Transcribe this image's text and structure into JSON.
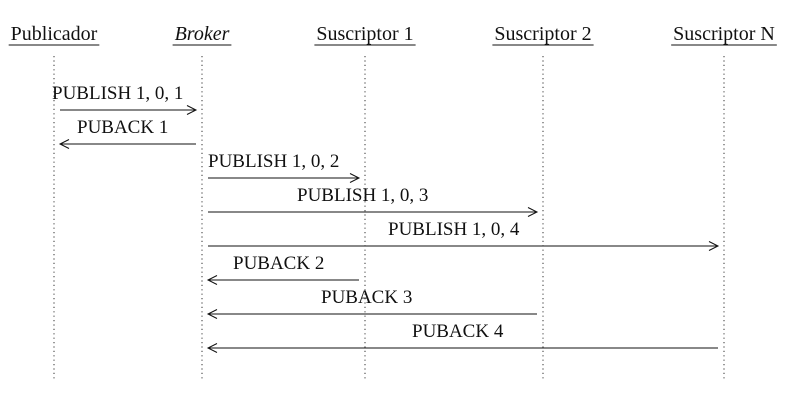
{
  "participants": [
    {
      "id": "publicador",
      "label": "Publicador",
      "italic": false
    },
    {
      "id": "broker",
      "label": "Broker",
      "italic": true
    },
    {
      "id": "suscriptor-1",
      "label": "Suscriptor 1",
      "italic": false
    },
    {
      "id": "suscriptor-2",
      "label": "Suscriptor 2",
      "italic": false
    },
    {
      "id": "suscriptor-n",
      "label": "Suscriptor N",
      "italic": false
    }
  ],
  "messages": [
    {
      "id": "publish-1",
      "label": "PUBLISH 1, 0, 1",
      "from": "publicador",
      "to": "broker"
    },
    {
      "id": "puback-1",
      "label": "PUBACK 1",
      "from": "broker",
      "to": "publicador"
    },
    {
      "id": "publish-2",
      "label": "PUBLISH 1, 0, 2",
      "from": "broker",
      "to": "suscriptor-1"
    },
    {
      "id": "publish-3",
      "label": "PUBLISH 1, 0, 3",
      "from": "broker",
      "to": "suscriptor-2"
    },
    {
      "id": "publish-4",
      "label": "PUBLISH 1, 0, 4",
      "from": "broker",
      "to": "suscriptor-n"
    },
    {
      "id": "puback-2",
      "label": "PUBACK 2",
      "from": "suscriptor-1",
      "to": "broker"
    },
    {
      "id": "puback-3",
      "label": "PUBACK 3",
      "from": "suscriptor-2",
      "to": "broker"
    },
    {
      "id": "puback-4",
      "label": "PUBACK 4",
      "from": "suscriptor-n",
      "to": "broker"
    }
  ]
}
